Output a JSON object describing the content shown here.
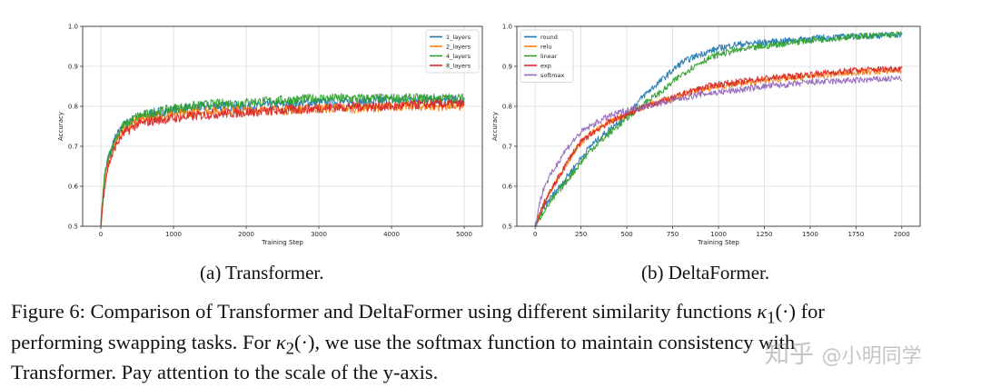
{
  "chart_data": [
    {
      "type": "line",
      "xlabel": "Training Step",
      "ylabel": "Accuracy",
      "xlim": [
        -250,
        5250
      ],
      "ylim": [
        0.5,
        1.0
      ],
      "xticks": [
        0,
        1000,
        2000,
        3000,
        4000,
        5000
      ],
      "yticks": [
        0.5,
        0.6,
        0.7,
        0.8,
        0.9,
        1.0
      ],
      "grid": true,
      "legend": "top-right",
      "x": [
        0,
        25,
        50,
        100,
        200,
        300,
        500,
        750,
        1000,
        1250,
        1500,
        2000,
        2500,
        3000,
        3500,
        4000,
        4500,
        5000
      ],
      "series": [
        {
          "name": "1_layers",
          "color": "#1f77b4",
          "values": [
            0.5,
            0.57,
            0.62,
            0.67,
            0.72,
            0.75,
            0.77,
            0.785,
            0.79,
            0.795,
            0.8,
            0.8,
            0.805,
            0.81,
            0.81,
            0.815,
            0.815,
            0.815
          ]
        },
        {
          "name": "2_layers",
          "color": "#ff7f0e",
          "values": [
            0.5,
            0.56,
            0.61,
            0.66,
            0.71,
            0.74,
            0.765,
            0.775,
            0.78,
            0.785,
            0.79,
            0.79,
            0.79,
            0.795,
            0.795,
            0.8,
            0.8,
            0.8
          ]
        },
        {
          "name": "4_layers",
          "color": "#2ca02c",
          "values": [
            0.5,
            0.57,
            0.62,
            0.67,
            0.72,
            0.75,
            0.775,
            0.785,
            0.795,
            0.8,
            0.805,
            0.81,
            0.815,
            0.82,
            0.82,
            0.82,
            0.82,
            0.82
          ]
        },
        {
          "name": "8_layers",
          "color": "#d62728",
          "values": [
            0.5,
            0.55,
            0.6,
            0.65,
            0.7,
            0.73,
            0.755,
            0.765,
            0.77,
            0.775,
            0.78,
            0.785,
            0.79,
            0.795,
            0.8,
            0.8,
            0.805,
            0.805
          ]
        }
      ]
    },
    {
      "type": "line",
      "xlabel": "Training Step",
      "ylabel": "Accuracy",
      "xlim": [
        -100,
        2100
      ],
      "ylim": [
        0.5,
        1.0
      ],
      "xticks": [
        0,
        250,
        500,
        750,
        1000,
        1250,
        1500,
        1750,
        2000
      ],
      "yticks": [
        0.5,
        0.6,
        0.7,
        0.8,
        0.9,
        1.0
      ],
      "grid": true,
      "legend": "top-left",
      "x": [
        0,
        25,
        50,
        100,
        150,
        200,
        250,
        300,
        400,
        500,
        600,
        700,
        750,
        800,
        900,
        1000,
        1100,
        1250,
        1400,
        1500,
        1750,
        2000
      ],
      "series": [
        {
          "name": "round",
          "color": "#1f77b4",
          "values": [
            0.5,
            0.52,
            0.55,
            0.58,
            0.61,
            0.64,
            0.67,
            0.7,
            0.74,
            0.78,
            0.83,
            0.87,
            0.89,
            0.91,
            0.93,
            0.945,
            0.955,
            0.96,
            0.965,
            0.97,
            0.975,
            0.98
          ]
        },
        {
          "name": "relu",
          "color": "#ff7f0e",
          "values": [
            0.5,
            0.53,
            0.56,
            0.6,
            0.64,
            0.68,
            0.71,
            0.73,
            0.76,
            0.78,
            0.8,
            0.815,
            0.82,
            0.83,
            0.84,
            0.85,
            0.855,
            0.865,
            0.87,
            0.875,
            0.885,
            0.89
          ]
        },
        {
          "name": "linear",
          "color": "#2ca02c",
          "values": [
            0.5,
            0.52,
            0.54,
            0.57,
            0.6,
            0.63,
            0.66,
            0.69,
            0.73,
            0.77,
            0.81,
            0.84,
            0.86,
            0.88,
            0.91,
            0.93,
            0.94,
            0.95,
            0.96,
            0.965,
            0.975,
            0.98
          ]
        },
        {
          "name": "exp",
          "color": "#d62728",
          "values": [
            0.5,
            0.53,
            0.56,
            0.6,
            0.64,
            0.68,
            0.71,
            0.73,
            0.76,
            0.78,
            0.8,
            0.815,
            0.82,
            0.83,
            0.845,
            0.855,
            0.86,
            0.87,
            0.875,
            0.88,
            0.89,
            0.895
          ]
        },
        {
          "name": "softmax",
          "color": "#9467bd",
          "values": [
            0.5,
            0.56,
            0.6,
            0.64,
            0.68,
            0.71,
            0.735,
            0.75,
            0.775,
            0.79,
            0.8,
            0.81,
            0.815,
            0.82,
            0.83,
            0.835,
            0.84,
            0.85,
            0.855,
            0.86,
            0.865,
            0.87
          ]
        }
      ]
    }
  ],
  "subcaptions": {
    "a": "(a) Transformer.",
    "b": "(b) DeltaFormer."
  },
  "caption": {
    "line1_text": "Figure 6: Comparison of Transformer and DeltaFormer using different similarity functions ",
    "kappa1": "κ",
    "kappa1_sub": "1",
    "kappa1_arg": "(·)",
    "line1_end": " for",
    "line2_start": "performing swapping tasks. For ",
    "kappa2": "κ",
    "kappa2_sub": "2",
    "kappa2_arg": "(·)",
    "line2_end": ", we use the softmax function to maintain consistency with",
    "line3": "Transformer. Pay attention to the scale of the y-axis."
  },
  "watermark": {
    "site": "知乎",
    "handle": "@小明同学"
  }
}
